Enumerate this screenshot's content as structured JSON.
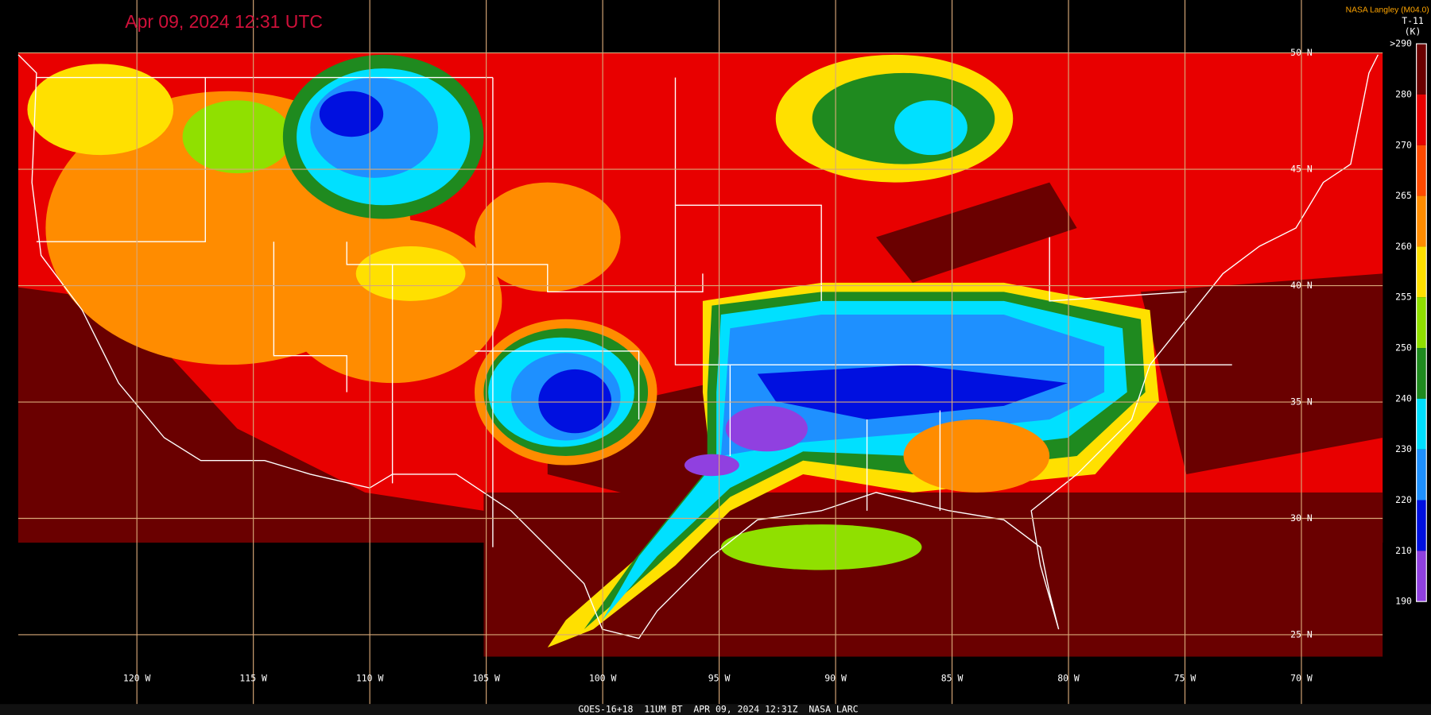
{
  "header": {
    "timestamp": "Apr 09, 2024 12:31 UTC",
    "credit": "NASA Langley (M04.0)",
    "product": "T-11",
    "unit": "(K)"
  },
  "colorbar": {
    "labels": [
      ">290",
      "280",
      "270",
      "265",
      "260",
      "255",
      "250",
      "240",
      "230",
      "220",
      "210",
      "190"
    ],
    "colors": [
      "#6a0000",
      "#e80000",
      "#ff4a00",
      "#ff8c00",
      "#ffe000",
      "#90e000",
      "#1f8a1f",
      "#00e0ff",
      "#1e90ff",
      "#0010e0",
      "#9040e0"
    ]
  },
  "grid": {
    "latitudes": [
      "50 N",
      "45 N",
      "40 N",
      "35 N",
      "30 N",
      "25 N"
    ],
    "longitudes": [
      "120 W",
      "115 W",
      "110 W",
      "105 W",
      "100 W",
      "95 W",
      "90 W",
      "85 W",
      "80 W",
      "75 W",
      "70 W"
    ]
  },
  "footer": "GOES-16+18  11UM BT  APR 09, 2024 12:31Z  NASA LARC"
}
